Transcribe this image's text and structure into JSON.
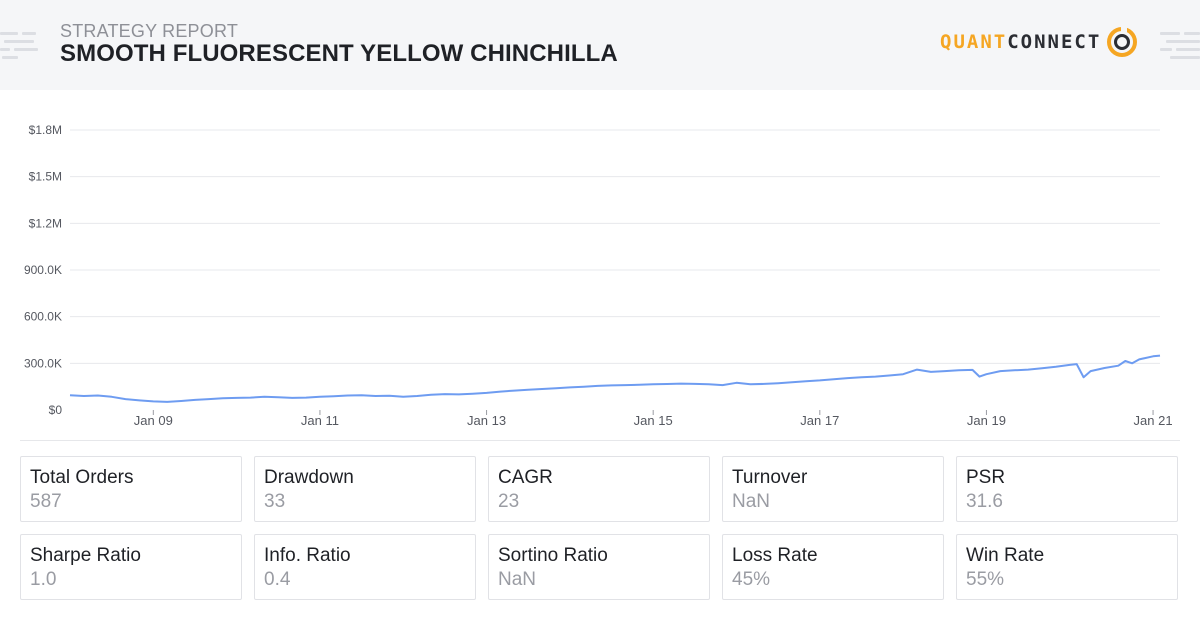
{
  "header": {
    "kicker": "STRATEGY REPORT",
    "title": "SMOOTH FLUORESCENT YELLOW CHINCHILLA",
    "logo_quant": "QUANT",
    "logo_connect": "CONNECT"
  },
  "colors": {
    "accent": "#f5a623",
    "line": "#6e9cf1",
    "header_bg": "#f5f6f8",
    "muted": "#9a9ca3"
  },
  "chart_data": {
    "type": "line",
    "title": "",
    "xlabel": "",
    "ylabel": "",
    "ylim": [
      0,
      1800000
    ],
    "xlim": [
      "2008-01",
      "2021-02"
    ],
    "grid": true,
    "y_ticks": [
      {
        "value": 0,
        "label": "$0"
      },
      {
        "value": 300000,
        "label": "300.0K"
      },
      {
        "value": 600000,
        "label": "600.0K"
      },
      {
        "value": 900000,
        "label": "900.0K"
      },
      {
        "value": 1200000,
        "label": "$1.2M"
      },
      {
        "value": 1500000,
        "label": "$1.5M"
      },
      {
        "value": 1800000,
        "label": "$1.8M"
      }
    ],
    "x_ticks": [
      {
        "value": "2009-01",
        "label": "Jan 09"
      },
      {
        "value": "2011-01",
        "label": "Jan 11"
      },
      {
        "value": "2013-01",
        "label": "Jan 13"
      },
      {
        "value": "2015-01",
        "label": "Jan 15"
      },
      {
        "value": "2017-01",
        "label": "Jan 17"
      },
      {
        "value": "2019-01",
        "label": "Jan 19"
      },
      {
        "value": "2021-01",
        "label": "Jan 21"
      }
    ],
    "series": [
      {
        "x": [
          "2008-01",
          "2008-03",
          "2008-05",
          "2008-07",
          "2008-09",
          "2008-11",
          "2009-01",
          "2009-03",
          "2009-05",
          "2009-07",
          "2009-09",
          "2009-11",
          "2010-01",
          "2010-03",
          "2010-05",
          "2010-07",
          "2010-09",
          "2010-11",
          "2011-01",
          "2011-03",
          "2011-05",
          "2011-07",
          "2011-09",
          "2011-11",
          "2012-01",
          "2012-03",
          "2012-05",
          "2012-07",
          "2012-09",
          "2012-11",
          "2013-01",
          "2013-03",
          "2013-05",
          "2013-07",
          "2013-09",
          "2013-11",
          "2014-01",
          "2014-03",
          "2014-05",
          "2014-07",
          "2014-09",
          "2014-11",
          "2015-01",
          "2015-03",
          "2015-05",
          "2015-07",
          "2015-09",
          "2015-11",
          "2016-01",
          "2016-03",
          "2016-05",
          "2016-07",
          "2016-09",
          "2016-11",
          "2017-01",
          "2017-03",
          "2017-05",
          "2017-07",
          "2017-09",
          "2017-11",
          "2018-01",
          "2018-03",
          "2018-05",
          "2018-07",
          "2018-09",
          "2018-11",
          "2018-12",
          "2019-01",
          "2019-03",
          "2019-05",
          "2019-07",
          "2019-09",
          "2019-11",
          "2020-01",
          "2020-02",
          "2020-03",
          "2020-04",
          "2020-06",
          "2020-08",
          "2020-09",
          "2020-10",
          "2020-11",
          "2021-01",
          "2021-02"
        ],
        "values": [
          95000,
          90000,
          93000,
          85000,
          70000,
          62000,
          55000,
          52000,
          58000,
          65000,
          70000,
          75000,
          78000,
          80000,
          85000,
          82000,
          78000,
          80000,
          85000,
          88000,
          93000,
          95000,
          90000,
          92000,
          85000,
          90000,
          98000,
          102000,
          100000,
          104000,
          110000,
          118000,
          125000,
          130000,
          135000,
          140000,
          145000,
          150000,
          155000,
          158000,
          160000,
          162000,
          165000,
          167000,
          170000,
          168000,
          165000,
          160000,
          175000,
          165000,
          168000,
          172000,
          178000,
          185000,
          190000,
          198000,
          205000,
          210000,
          215000,
          222000,
          230000,
          260000,
          245000,
          250000,
          255000,
          258000,
          215000,
          230000,
          250000,
          255000,
          260000,
          268000,
          278000,
          290000,
          295000,
          210000,
          250000,
          270000,
          285000,
          315000,
          300000,
          325000,
          345000,
          350000
        ]
      }
    ]
  },
  "metrics": [
    {
      "label": "Total Orders",
      "value": "587"
    },
    {
      "label": "Drawdown",
      "value": "33"
    },
    {
      "label": "CAGR",
      "value": "23"
    },
    {
      "label": "Turnover",
      "value": "NaN"
    },
    {
      "label": "PSR",
      "value": "31.6"
    },
    {
      "label": "Sharpe Ratio",
      "value": "1.0"
    },
    {
      "label": "Info. Ratio",
      "value": "0.4"
    },
    {
      "label": "Sortino Ratio",
      "value": "NaN"
    },
    {
      "label": "Loss Rate",
      "value": "45%"
    },
    {
      "label": "Win Rate",
      "value": "55%"
    }
  ]
}
